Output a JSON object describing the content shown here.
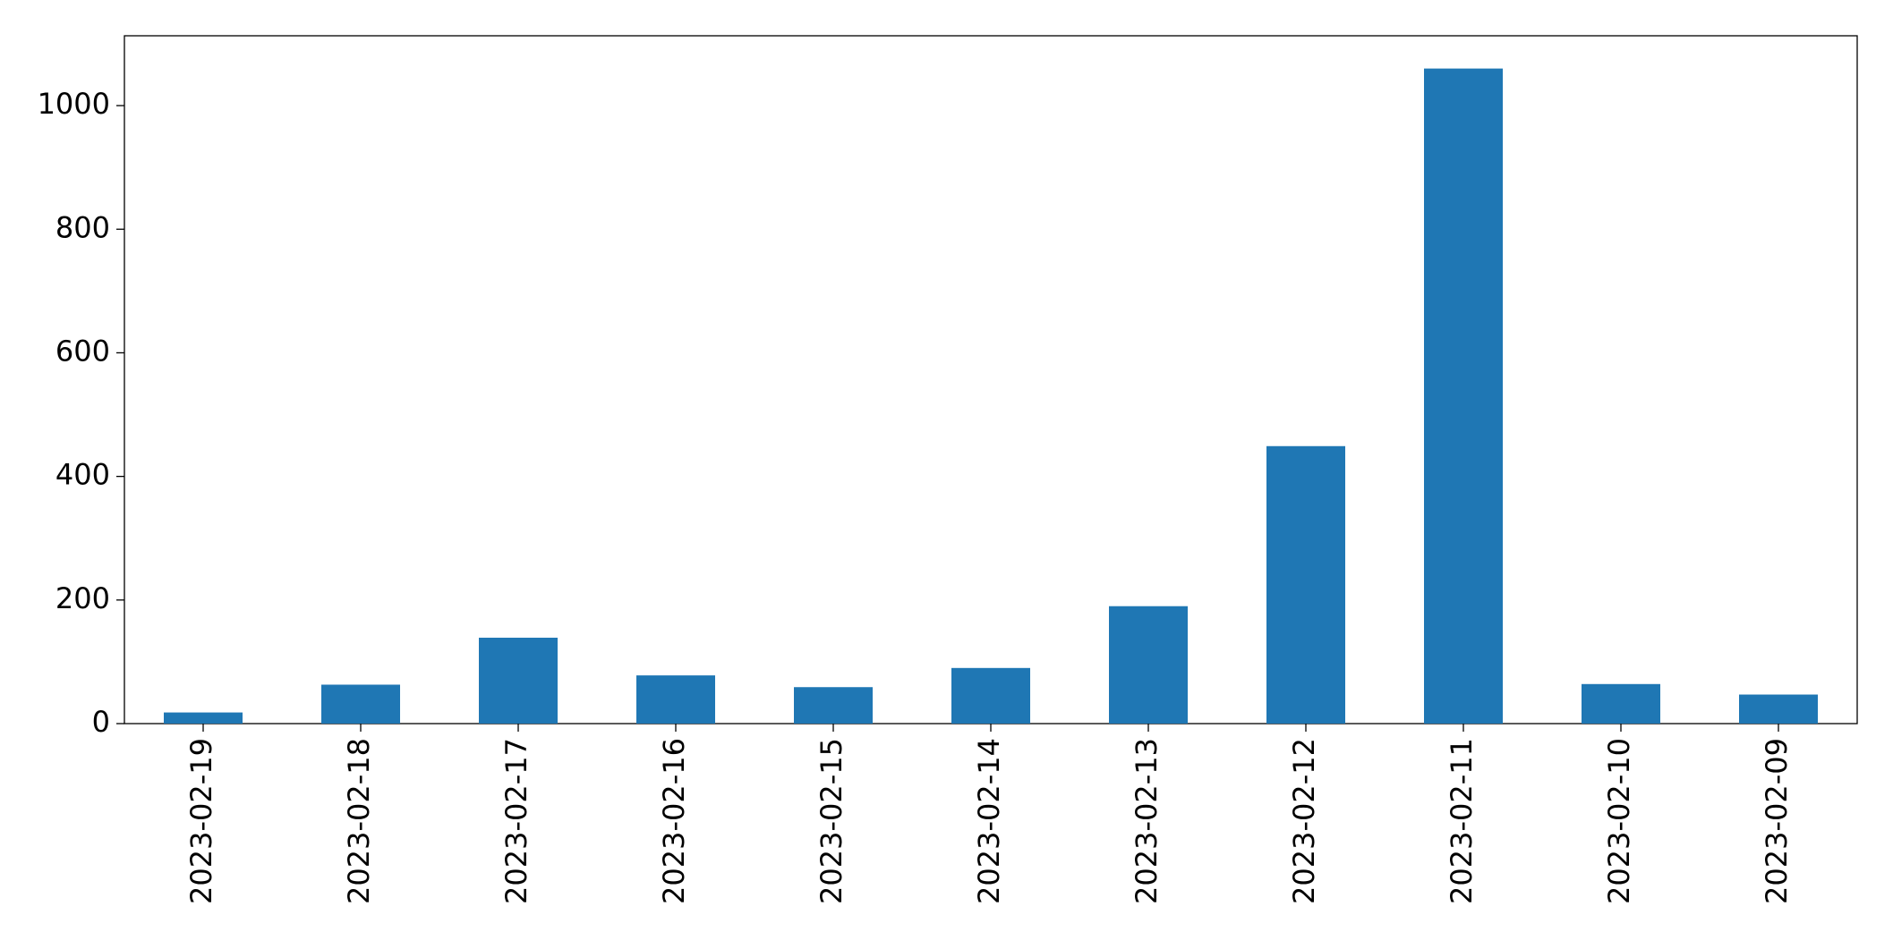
{
  "chart_data": {
    "type": "bar",
    "categories": [
      "2023-02-19",
      "2023-02-18",
      "2023-02-17",
      "2023-02-16",
      "2023-02-15",
      "2023-02-14",
      "2023-02-13",
      "2023-02-12",
      "2023-02-11",
      "2023-02-10",
      "2023-02-09"
    ],
    "values": [
      18,
      63,
      139,
      78,
      59,
      90,
      190,
      449,
      1060,
      64,
      47
    ],
    "color": "#1f77b4",
    "ylim": [
      0,
      1113
    ],
    "yticks": [
      0,
      200,
      400,
      600,
      800,
      1000
    ],
    "grid": false
  }
}
